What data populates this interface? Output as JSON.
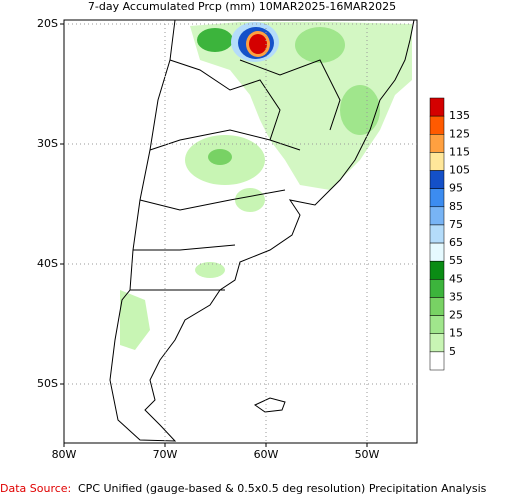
{
  "title": "7-day Accumulated Prcp (mm) 10MAR2025-16MAR2025",
  "lat_labels": [
    "20S",
    "30S",
    "40S",
    "50S"
  ],
  "lon_labels": [
    "80W",
    "70W",
    "60W",
    "50W"
  ],
  "colorbar": {
    "labels": [
      "135",
      "125",
      "115",
      "105",
      "95",
      "85",
      "75",
      "65",
      "55",
      "45",
      "35",
      "25",
      "15",
      "5"
    ],
    "colors": [
      "#d40000",
      "#ff5a00",
      "#ffa040",
      "#ffe79a",
      "#1450c8",
      "#3c8cf0",
      "#78b4f5",
      "#b4dcfa",
      "#e6faff",
      "#0a8c14",
      "#3cb43c",
      "#78d264",
      "#a0e68c",
      "#c8f5b4",
      "#ffffff"
    ]
  },
  "footer": {
    "source_label": "Data Source:",
    "source_text": "CPC Unified (gauge-based & 0.5x0.5 deg resolution) Precipitation Analysis"
  }
}
